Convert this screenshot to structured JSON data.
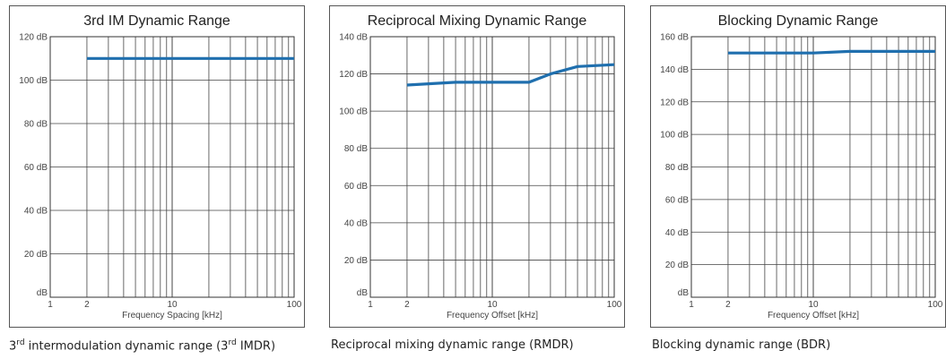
{
  "chart_data": [
    {
      "type": "line",
      "title": "3rd IM Dynamic Range",
      "xlabel": "Frequency Spacing [kHz]",
      "ylabel": "",
      "x_scale": "log",
      "xlim": [
        1,
        100
      ],
      "ylim": [
        0,
        120
      ],
      "x_tick_labels": [
        "1",
        "2",
        "10",
        "100"
      ],
      "y_tick_labels": [
        "dB",
        "20 dB",
        "40 dB",
        "60 dB",
        "80 dB",
        "100 dB",
        "120 dB"
      ],
      "grid": true,
      "series": [
        {
          "x": [
            2,
            100
          ],
          "values": [
            110,
            110
          ]
        }
      ]
    },
    {
      "type": "line",
      "title": "Reciprocal Mixing Dynamic Range",
      "xlabel": "Frequency Offset [kHz]",
      "ylabel": "",
      "x_scale": "log",
      "xlim": [
        1,
        100
      ],
      "ylim": [
        0,
        140
      ],
      "x_tick_labels": [
        "1",
        "2",
        "10",
        "100"
      ],
      "y_tick_labels": [
        "dB",
        "20 dB",
        "40 dB",
        "60 dB",
        "80 dB",
        "100 dB",
        "120 dB",
        "140 dB"
      ],
      "grid": true,
      "series": [
        {
          "x": [
            2,
            5,
            20,
            30,
            50,
            100
          ],
          "values": [
            114,
            115.5,
            115.5,
            120,
            124,
            125
          ]
        }
      ]
    },
    {
      "type": "line",
      "title": "Blocking Dynamic Range",
      "xlabel": "Frequency Offset [kHz]",
      "ylabel": "",
      "x_scale": "log",
      "xlim": [
        1,
        100
      ],
      "ylim": [
        0,
        160
      ],
      "x_tick_labels": [
        "1",
        "2",
        "10",
        "100"
      ],
      "y_tick_labels": [
        "dB",
        "20 dB",
        "40 dB",
        "60 dB",
        "80 dB",
        "100 dB",
        "120 dB",
        "140 dB",
        "160 dB"
      ],
      "grid": true,
      "series": [
        {
          "x": [
            2,
            10,
            20,
            100
          ],
          "values": [
            150,
            150,
            151,
            151
          ]
        }
      ]
    }
  ],
  "captions": [
    {
      "main": "3",
      "sup": "rd",
      "rest": " intermodulation dynamic range (3",
      "sup2": "rd",
      "end": " IMDR)"
    },
    {
      "main": "Reciprocal mixing dynamic range (RMDR)"
    },
    {
      "main": "Blocking dynamic range (BDR)"
    }
  ],
  "colors": {
    "line": "#1f6fae",
    "frame": "#333333",
    "grid": "#444444"
  }
}
